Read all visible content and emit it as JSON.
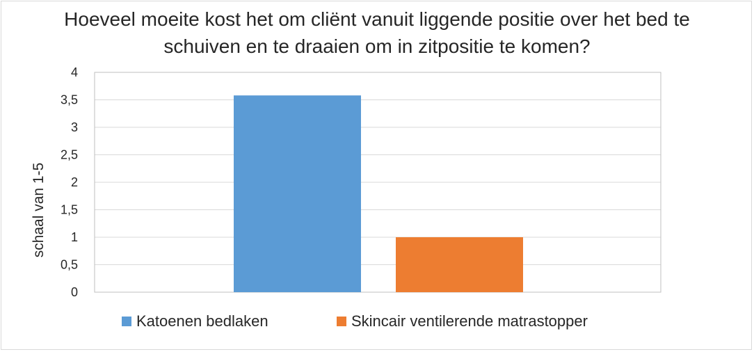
{
  "chart_data": {
    "type": "bar",
    "title_lines": [
      "Hoeveel moeite kost het om cliënt vanuit liggende positie over het bed te",
      "schuiven en te draaien om in zitpositie te komen?"
    ],
    "ylabel": "schaal van  1-5",
    "xlabel": "",
    "ylim": [
      0,
      4
    ],
    "y_ticks": [
      0,
      0.5,
      1,
      1.5,
      2,
      2.5,
      3,
      3.5,
      4
    ],
    "y_tick_labels": [
      "0",
      "0,5",
      "1",
      "1,5",
      "2",
      "2,5",
      "3",
      "3,5",
      "4"
    ],
    "grid": true,
    "legend_position": "bottom",
    "series": [
      {
        "name": "Katoenen bedlaken",
        "values": [
          3.58
        ],
        "color": "#5b9bd5"
      },
      {
        "name": "Skincair ventilerende matrastopper",
        "values": [
          1.0
        ],
        "color": "#ed7d31"
      }
    ]
  }
}
